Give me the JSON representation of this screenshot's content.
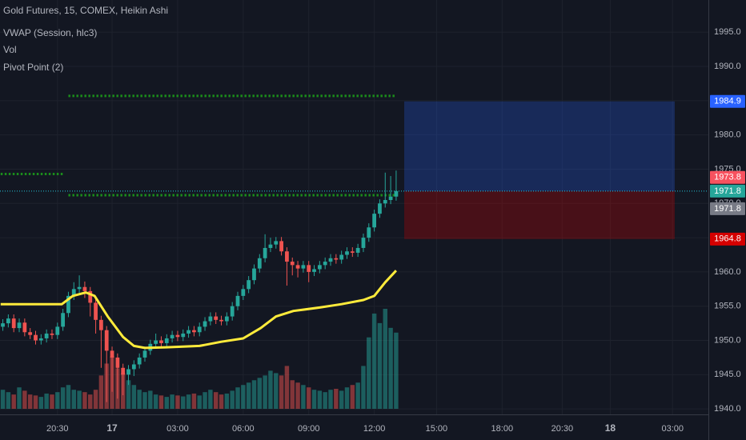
{
  "chart_data": {
    "type": "candlestick",
    "title": "Gold Futures, 15, COMEX, Heikin Ashi",
    "indicators": [
      "VWAP (Session, hlc3)",
      "Vol",
      "Pivot Point (2)"
    ],
    "up_color": "#26a69a",
    "down_color": "#ef5350",
    "background": "#131722",
    "grid": true,
    "xlim": [
      -5.13,
      27.29
    ],
    "xticks": [
      {
        "value": -2.5,
        "label": "20:30"
      },
      {
        "value": 0,
        "label": "17"
      },
      {
        "value": 3,
        "label": "03:00"
      },
      {
        "value": 6,
        "label": "06:00"
      },
      {
        "value": 9,
        "label": "09:00"
      },
      {
        "value": 12,
        "label": "12:00"
      },
      {
        "value": 14.85,
        "label": "15:00"
      },
      {
        "value": 17.85,
        "label": "18:00"
      },
      {
        "value": 20.6,
        "label": "20:30"
      },
      {
        "value": 22.8,
        "label": "18"
      },
      {
        "value": 25.65,
        "label": "03:00"
      }
    ],
    "ylim": [
      1939.2,
      1999.7
    ],
    "yticks": [
      {
        "value": 1940,
        "label": "1940.0"
      },
      {
        "value": 1945,
        "label": "1945.0"
      },
      {
        "value": 1950,
        "label": "1950.0"
      },
      {
        "value": 1955,
        "label": "1955.0"
      },
      {
        "value": 1960,
        "label": "1960.0"
      },
      {
        "value": 1965,
        "label": "1965.0"
      },
      {
        "value": 1970,
        "label": "1970.0"
      },
      {
        "value": 1975,
        "label": "1975.0"
      },
      {
        "value": 1980,
        "label": "1980.0"
      },
      {
        "value": 1985,
        "label": "1985.0"
      },
      {
        "value": 1990,
        "label": "1990.0"
      },
      {
        "value": 1995,
        "label": "1995.0"
      }
    ],
    "x_start": -5.0,
    "x_step": 0.25,
    "open": [
      1952.0,
      1952.5,
      1953.2,
      1951.8,
      1952.6,
      1951.2,
      1950.8,
      1950.0,
      1950.3,
      1951.0,
      1950.8,
      1952.0,
      1954.0,
      1956.5,
      1957.5,
      1957.8,
      1957.2,
      1955.5,
      1953.0,
      1951.5,
      1948.5,
      1947.5,
      1946.0,
      1945.0,
      1945.8,
      1946.5,
      1947.5,
      1948.5,
      1949.5,
      1950.0,
      1949.6,
      1950.3,
      1950.8,
      1950.5,
      1951.0,
      1951.5,
      1951.2,
      1952.0,
      1952.8,
      1953.5,
      1953.0,
      1952.8,
      1953.5,
      1955.0,
      1956.5,
      1957.5,
      1958.8,
      1960.5,
      1962.0,
      1963.5,
      1964.0,
      1964.5,
      1963.0,
      1961.5,
      1961.0,
      1960.5,
      1961.0,
      1960.0,
      1960.4,
      1961.0,
      1961.5,
      1962.0,
      1961.8,
      1962.5,
      1963.0,
      1962.8,
      1963.5,
      1965.0,
      1966.5,
      1968.5,
      1970.0,
      1970.5,
      1971.0
    ],
    "high": [
      1953.1,
      1953.8,
      1953.8,
      1953.2,
      1953.2,
      1951.8,
      1951.4,
      1950.9,
      1951.6,
      1951.6,
      1952.6,
      1954.6,
      1957.1,
      1958.5,
      1959.5,
      1958.6,
      1957.8,
      1956.1,
      1953.6,
      1952.1,
      1949.1,
      1948.1,
      1946.6,
      1946.4,
      1947.1,
      1948.1,
      1949.1,
      1950.1,
      1951.0,
      1950.6,
      1950.9,
      1951.4,
      1951.4,
      1951.6,
      1952.1,
      1952.1,
      1952.6,
      1953.4,
      1954.1,
      1954.1,
      1953.6,
      1954.1,
      1955.6,
      1957.1,
      1958.1,
      1959.4,
      1961.1,
      1962.6,
      1965.5,
      1965.0,
      1965.1,
      1965.1,
      1963.6,
      1962.1,
      1961.6,
      1961.6,
      1961.6,
      1961.0,
      1961.6,
      1962.1,
      1962.6,
      1962.6,
      1963.1,
      1963.6,
      1963.6,
      1964.1,
      1965.6,
      1967.1,
      1969.1,
      1970.6,
      1974.5,
      1974.0,
      1974.8
    ],
    "low": [
      1951.4,
      1951.9,
      1951.2,
      1951.2,
      1950.6,
      1950.2,
      1949.4,
      1949.4,
      1949.7,
      1950.2,
      1950.2,
      1951.4,
      1953.4,
      1955.9,
      1956.9,
      1956.2,
      1953.5,
      1951.0,
      1946.0,
      1941.0,
      1942.5,
      1941.5,
      1942.0,
      1943.5,
      1944.8,
      1945.9,
      1946.9,
      1947.9,
      1948.9,
      1949.0,
      1949.0,
      1949.7,
      1949.9,
      1949.9,
      1950.4,
      1950.6,
      1950.6,
      1951.4,
      1952.2,
      1952.4,
      1952.2,
      1952.2,
      1952.9,
      1954.4,
      1955.9,
      1956.9,
      1958.2,
      1959.9,
      1961.4,
      1962.9,
      1963.4,
      1962.4,
      1958.0,
      1959.5,
      1959.2,
      1959.9,
      1958.5,
      1959.4,
      1959.8,
      1960.4,
      1960.9,
      1961.2,
      1961.2,
      1961.9,
      1962.2,
      1962.2,
      1962.9,
      1964.4,
      1965.9,
      1967.9,
      1969.4,
      1969.9,
      1970.4
    ],
    "close": [
      1952.5,
      1953.2,
      1951.8,
      1952.6,
      1951.2,
      1950.8,
      1950.0,
      1950.3,
      1951.0,
      1950.8,
      1952.0,
      1954.0,
      1956.5,
      1957.5,
      1957.8,
      1957.2,
      1955.5,
      1953.0,
      1951.5,
      1948.5,
      1947.5,
      1946.0,
      1945.0,
      1945.8,
      1946.5,
      1947.5,
      1948.5,
      1949.5,
      1950.0,
      1949.6,
      1950.3,
      1950.8,
      1950.5,
      1951.0,
      1951.5,
      1951.2,
      1952.0,
      1952.8,
      1953.5,
      1953.0,
      1952.8,
      1953.5,
      1955.0,
      1956.5,
      1957.5,
      1958.8,
      1960.5,
      1962.0,
      1963.5,
      1964.0,
      1964.5,
      1963.0,
      1961.5,
      1961.0,
      1960.5,
      1961.0,
      1960.0,
      1960.4,
      1961.0,
      1961.5,
      1962.0,
      1961.8,
      1962.5,
      1963.0,
      1962.8,
      1963.5,
      1965.0,
      1966.5,
      1968.5,
      1970.0,
      1970.5,
      1971.0,
      1971.8
    ],
    "volume": [
      40,
      35,
      30,
      45,
      38,
      30,
      28,
      25,
      32,
      30,
      35,
      45,
      50,
      40,
      38,
      35,
      30,
      40,
      70,
      95,
      110,
      85,
      75,
      60,
      50,
      40,
      35,
      38,
      30,
      28,
      25,
      30,
      28,
      26,
      30,
      32,
      28,
      35,
      40,
      35,
      30,
      32,
      38,
      45,
      50,
      55,
      60,
      65,
      70,
      80,
      75,
      70,
      90,
      60,
      55,
      50,
      45,
      40,
      38,
      35,
      40,
      42,
      38,
      45,
      50,
      55,
      90,
      150,
      200,
      180,
      210,
      170,
      160
    ],
    "vwap": {
      "color": "#ffeb3b",
      "x": [
        -5.1,
        -2.3,
        -1.8,
        -1.2,
        -0.8,
        -0.2,
        0.5,
        1.0,
        1.5,
        2.5,
        4.0,
        5.0,
        6.0,
        6.8,
        7.5,
        8.3,
        9.5,
        10.5,
        11.5,
        12.0,
        12.5,
        13.0
      ],
      "values": [
        1955.3,
        1955.3,
        1956.5,
        1957.0,
        1956.5,
        1953.5,
        1950.5,
        1949.2,
        1948.9,
        1949.0,
        1949.2,
        1949.8,
        1950.3,
        1951.8,
        1953.5,
        1954.3,
        1954.8,
        1955.3,
        1955.9,
        1956.5,
        1958.5,
        1960.2
      ]
    },
    "pivot_levels": [
      {
        "value": 1974.3,
        "x": [
          -5.1,
          -2.2
        ]
      },
      {
        "value": 1985.7,
        "x": [
          -2.0,
          13.0
        ]
      },
      {
        "value": 1971.2,
        "x": [
          -2.0,
          13.0
        ]
      }
    ],
    "pivot_color": "#1b8c1b",
    "last_price_line": {
      "value": 1971.8,
      "color": "#26c6da"
    },
    "position": {
      "entry": 1971.8,
      "target": 1984.9,
      "stop": 1964.8,
      "x": [
        13.37,
        25.75
      ]
    },
    "price_labels": [
      {
        "value": 1984.9,
        "color": "#2962ff"
      },
      {
        "value": 1973.8,
        "color": "#f7525f"
      },
      {
        "value": 1971.8,
        "color": "#26a69a"
      },
      {
        "value": 1971.8,
        "color": "#787b86"
      },
      {
        "value": 1964.8,
        "color": "#d50000"
      }
    ]
  }
}
